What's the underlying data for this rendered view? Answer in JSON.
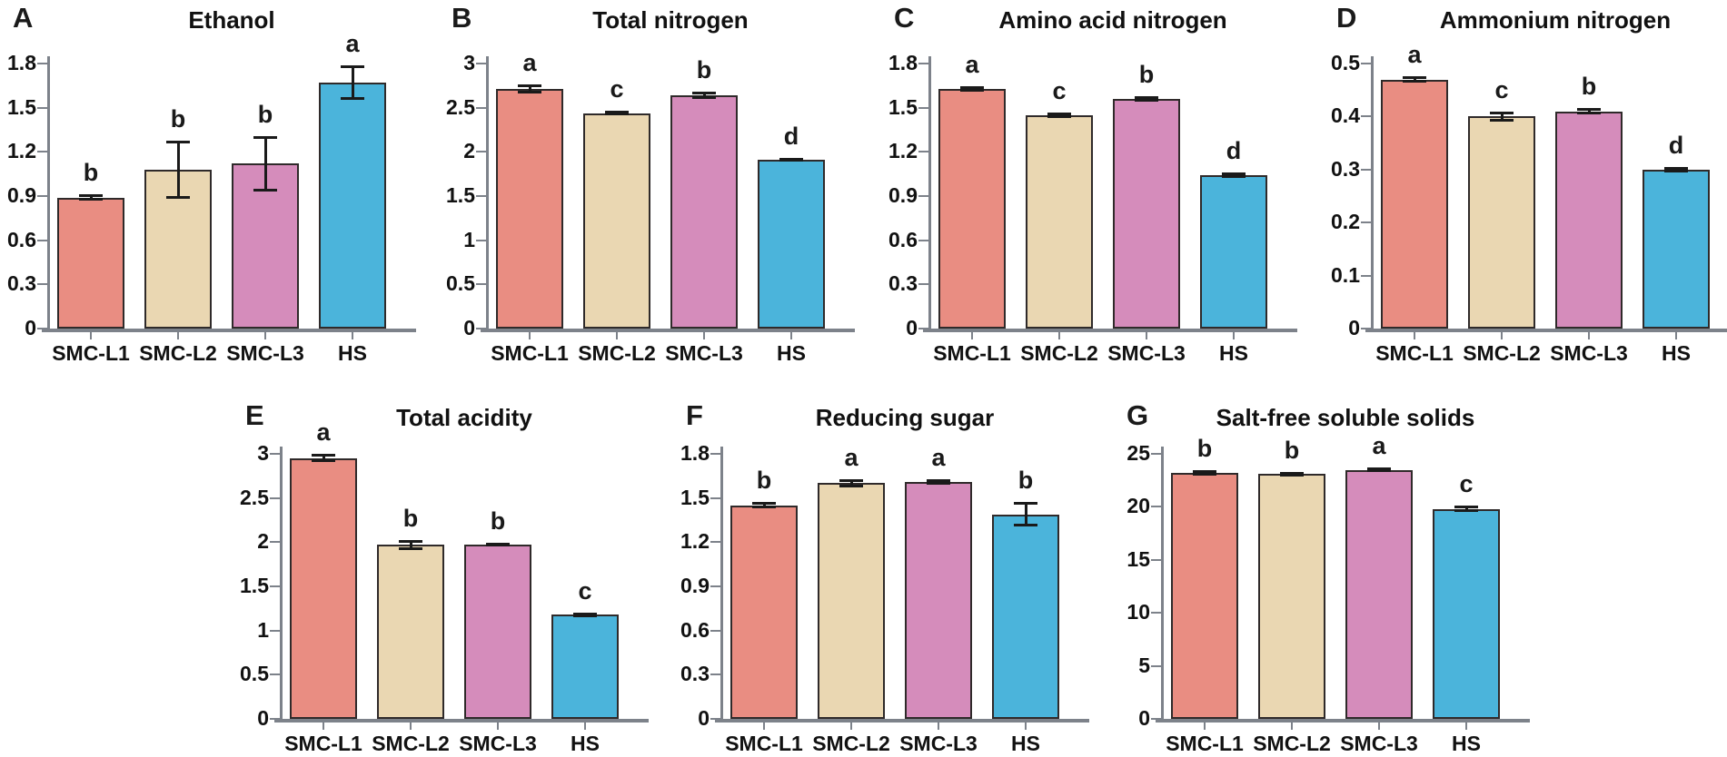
{
  "figure": {
    "description": "Seven-panel bar chart figure comparing physicochemical properties of SMC-L1, SMC-L2, SMC-L3 and HS samples, with error bars and significance letters"
  },
  "chart_data": [
    {
      "panel": "A",
      "type": "bar",
      "title": "Ethanol",
      "categories": [
        "SMC-L1",
        "SMC-L2",
        "SMC-L3",
        "HS"
      ],
      "values": [
        0.89,
        1.08,
        1.12,
        1.67
      ],
      "errors": [
        0.015,
        0.19,
        0.18,
        0.11
      ],
      "sig_letters": [
        "b",
        "b",
        "b",
        "a"
      ],
      "ylim": [
        0,
        1.8
      ],
      "yticks": [
        0,
        0.3,
        0.6,
        0.9,
        1.2,
        1.5,
        1.8
      ],
      "ytick_labels": [
        "0",
        "0.3",
        "0.6",
        "0.9",
        "1.2",
        "1.5",
        "1.8"
      ],
      "grid": false,
      "legend": "none"
    },
    {
      "panel": "B",
      "type": "bar",
      "title": "Total nitrogen",
      "categories": [
        "SMC-L1",
        "SMC-L2",
        "SMC-L3",
        "HS"
      ],
      "values": [
        2.71,
        2.44,
        2.64,
        1.91
      ],
      "errors": [
        0.04,
        0.012,
        0.035,
        0.012
      ],
      "sig_letters": [
        "a",
        "c",
        "b",
        "d"
      ],
      "ylim": [
        0,
        3
      ],
      "yticks": [
        0,
        0.5,
        1,
        1.5,
        2,
        2.5,
        3
      ],
      "ytick_labels": [
        "0",
        "0.5",
        "1",
        "1.5",
        "2",
        "2.5",
        "3"
      ],
      "grid": false,
      "legend": "none"
    },
    {
      "panel": "C",
      "type": "bar",
      "title": "Amino acid nitrogen",
      "categories": [
        "SMC-L1",
        "SMC-L2",
        "SMC-L3",
        "HS"
      ],
      "values": [
        1.63,
        1.45,
        1.56,
        1.04
      ],
      "errors": [
        0.012,
        0.012,
        0.012,
        0.012
      ],
      "sig_letters": [
        "a",
        "c",
        "b",
        "d"
      ],
      "ylim": [
        0,
        1.8
      ],
      "yticks": [
        0,
        0.3,
        0.6,
        0.9,
        1.2,
        1.5,
        1.8
      ],
      "ytick_labels": [
        "0",
        "0.3",
        "0.6",
        "0.9",
        "1.2",
        "1.5",
        "1.8"
      ],
      "grid": false,
      "legend": "none"
    },
    {
      "panel": "D",
      "type": "bar",
      "title": "Ammonium nitrogen",
      "categories": [
        "SMC-L1",
        "SMC-L2",
        "SMC-L3",
        "HS"
      ],
      "values": [
        0.47,
        0.4,
        0.41,
        0.3
      ],
      "errors": [
        0.005,
        0.008,
        0.004,
        0.003
      ],
      "sig_letters": [
        "a",
        "c",
        "b",
        "d"
      ],
      "ylim": [
        0,
        0.5
      ],
      "yticks": [
        0,
        0.1,
        0.2,
        0.3,
        0.4,
        0.5
      ],
      "ytick_labels": [
        "0",
        "0.1",
        "0.2",
        "0.3",
        "0.4",
        "0.5"
      ],
      "grid": false,
      "legend": "none"
    },
    {
      "panel": "E",
      "type": "bar",
      "title": "Total acidity",
      "categories": [
        "SMC-L1",
        "SMC-L2",
        "SMC-L3",
        "HS"
      ],
      "values": [
        2.95,
        1.97,
        1.97,
        1.18
      ],
      "errors": [
        0.035,
        0.045,
        0.012,
        0.015
      ],
      "sig_letters": [
        "a",
        "b",
        "b",
        "c"
      ],
      "ylim": [
        0,
        3
      ],
      "yticks": [
        0,
        0.5,
        1,
        1.5,
        2,
        2.5,
        3
      ],
      "ytick_labels": [
        "0",
        "0.5",
        "1",
        "1.5",
        "2",
        "2.5",
        "3"
      ],
      "grid": false,
      "legend": "none"
    },
    {
      "panel": "F",
      "type": "bar",
      "title": "Reducing sugar",
      "categories": [
        "SMC-L1",
        "SMC-L2",
        "SMC-L3",
        "HS"
      ],
      "values": [
        1.45,
        1.6,
        1.61,
        1.39
      ],
      "errors": [
        0.015,
        0.02,
        0.012,
        0.08
      ],
      "sig_letters": [
        "b",
        "a",
        "a",
        "b"
      ],
      "ylim": [
        0,
        1.8
      ],
      "yticks": [
        0,
        0.3,
        0.6,
        0.9,
        1.2,
        1.5,
        1.8
      ],
      "ytick_labels": [
        "0",
        "0.3",
        "0.6",
        "0.9",
        "1.2",
        "1.5",
        "1.8"
      ],
      "grid": false,
      "legend": "none"
    },
    {
      "panel": "G",
      "type": "bar",
      "title": "Salt-free soluble solids",
      "categories": [
        "SMC-L1",
        "SMC-L2",
        "SMC-L3",
        "HS"
      ],
      "values": [
        23.2,
        23.1,
        23.5,
        19.8
      ],
      "errors": [
        0.15,
        0.12,
        0.15,
        0.2
      ],
      "sig_letters": [
        "b",
        "b",
        "a",
        "c"
      ],
      "ylim": [
        0,
        25
      ],
      "yticks": [
        0,
        5,
        10,
        15,
        20,
        25
      ],
      "ytick_labels": [
        "0",
        "5",
        "10",
        "15",
        "20",
        "25"
      ],
      "grid": false,
      "legend": "none"
    }
  ],
  "style": {
    "bar_colors": [
      "#E98D82",
      "#EAD7B2",
      "#D58CBB",
      "#4BB4DB"
    ],
    "bar_border_color": "#2F2A2A",
    "error_bar_color": "#1A1A1A",
    "axis_color": "#7D828A",
    "text_color": "#111111",
    "background_color": "#FFFFFF"
  }
}
